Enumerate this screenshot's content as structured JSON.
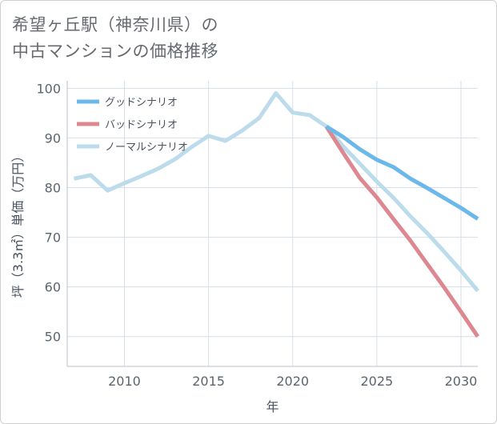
{
  "title_lines": [
    "希望ヶ丘駅（神奈川県）の",
    "中古マンションの価格推移"
  ],
  "chart_data": {
    "type": "line",
    "xlabel": "年",
    "ylabel": "坪（3.3㎡）単価（万円）",
    "xlim": [
      2006.6,
      2031
    ],
    "ylim": [
      44,
      101.5
    ],
    "x_ticks": [
      2010,
      2015,
      2020,
      2025,
      2030
    ],
    "y_ticks": [
      50,
      60,
      70,
      80,
      90,
      100
    ],
    "grid": true,
    "legend_position": "top-left",
    "series": [
      {
        "name": "グッドシナリオ",
        "color": "#6bb8ea",
        "x": [
          2022,
          2023,
          2024,
          2025,
          2026,
          2027,
          2028,
          2029,
          2030,
          2031
        ],
        "y": [
          92.3,
          90.2,
          87.7,
          85.6,
          84.1,
          81.8,
          79.9,
          77.9,
          75.9,
          73.7
        ]
      },
      {
        "name": "バッドシナリオ",
        "color": "#dd8891",
        "x": [
          2022,
          2023,
          2024,
          2025,
          2026,
          2027,
          2028,
          2029,
          2030,
          2031
        ],
        "y": [
          92.3,
          87.0,
          81.9,
          78.0,
          73.6,
          69.3,
          64.6,
          59.9,
          55.0,
          50.0
        ]
      },
      {
        "name": "ノーマルシナリオ",
        "color": "#bcdcec",
        "x": [
          2007,
          2008,
          2009,
          2010,
          2011,
          2012,
          2013,
          2014,
          2015,
          2016,
          2017,
          2018,
          2019,
          2020,
          2021,
          2022,
          2023,
          2024,
          2025,
          2026,
          2027,
          2028,
          2029,
          2030,
          2031
        ],
        "y": [
          81.8,
          82.5,
          79.4,
          80.9,
          82.3,
          83.8,
          85.7,
          88.2,
          90.4,
          89.4,
          91.5,
          94.0,
          99.0,
          95.1,
          94.6,
          92.3,
          88.3,
          84.8,
          81.2,
          77.9,
          74.2,
          70.8,
          67.1,
          63.3,
          59.2
        ]
      }
    ]
  }
}
